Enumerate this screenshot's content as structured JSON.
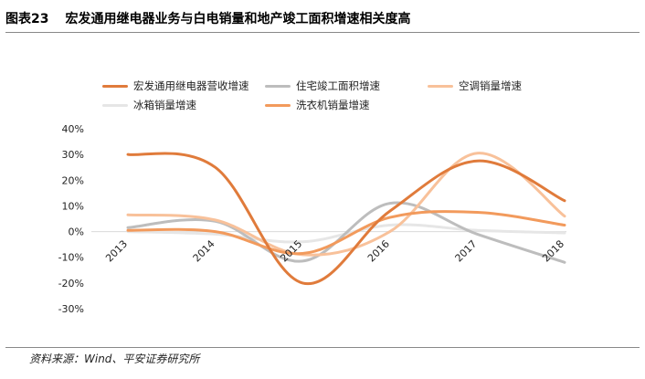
{
  "figure": {
    "number": "图表23",
    "title": "宏发通用继电器业务与白电销量和地产竣工面积增速相关度高"
  },
  "source": "资料来源：Wind、平安证券研究所",
  "chart_data": {
    "type": "line",
    "x": [
      "2013",
      "2014",
      "2015",
      "2016",
      "2017",
      "2018"
    ],
    "ylim": [
      -30,
      40
    ],
    "yticks": [
      -30,
      -20,
      -10,
      0,
      10,
      20,
      30,
      40
    ],
    "yticklabels": [
      "-30%",
      "-20%",
      "-10%",
      "0%",
      "10%",
      "20%",
      "30%",
      "40%"
    ],
    "unit": "%",
    "grid": false,
    "legend_position": "top",
    "series": [
      {
        "name": "宏发通用继电器营收增速",
        "color": "#e07b3b",
        "values": [
          30,
          25,
          -20,
          8,
          27.5,
          12
        ]
      },
      {
        "name": "住宅竣工面积增速",
        "color": "#bdbdbd",
        "values": [
          1.5,
          4,
          -11.5,
          11,
          -1,
          -12
        ]
      },
      {
        "name": "空调销量增速",
        "color": "#f8c19a",
        "values": [
          6.5,
          4.5,
          -9,
          0,
          30.5,
          6
        ]
      },
      {
        "name": "冰箱销量增速",
        "color": "#e6e6e6",
        "values": [
          0,
          -1,
          -4,
          2.5,
          0.5,
          -0.5
        ]
      },
      {
        "name": "洗衣机销量增速",
        "color": "#f29a5c",
        "values": [
          0.5,
          0,
          -8.5,
          5.5,
          7.5,
          2.5
        ]
      }
    ]
  }
}
